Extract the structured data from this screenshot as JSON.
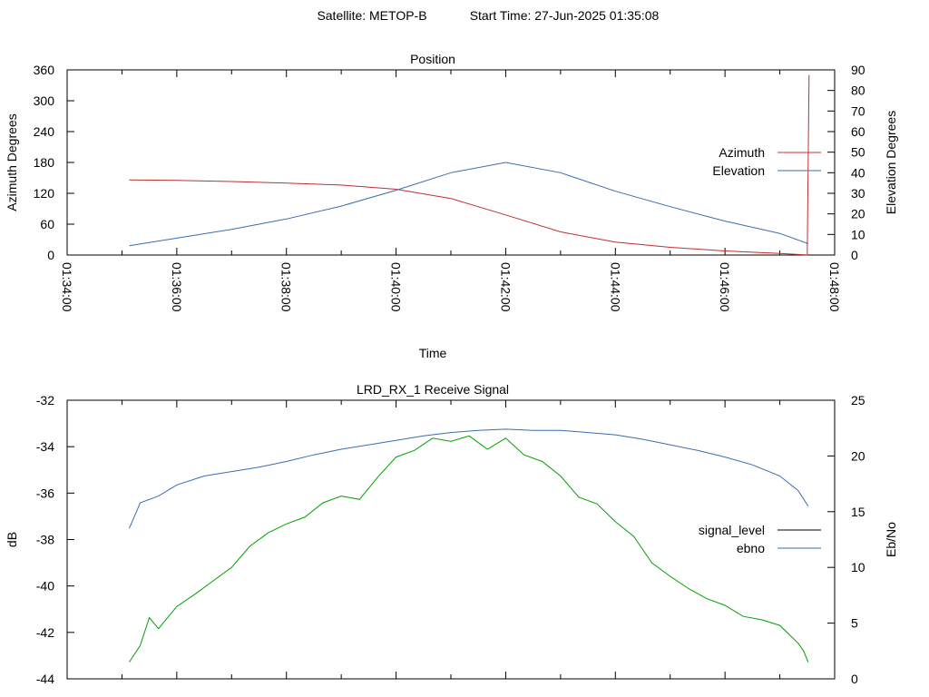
{
  "header": {
    "satellite_label": "Satellite: METOP-B",
    "start_label": "Start Time: 27-Jun-2025 01:35:08"
  },
  "chart_data": [
    {
      "type": "line",
      "title": "Position",
      "xlabel": "Time",
      "ylabel": "Azimuth Degrees",
      "y2label": "Elevation Degrees",
      "x_ticks": [
        "01:34:00",
        "01:36:00",
        "01:38:00",
        "01:40:00",
        "01:42:00",
        "01:44:00",
        "01:46:00",
        "01:48:00"
      ],
      "xlim": [
        0,
        840
      ],
      "ylim": [
        0,
        360
      ],
      "y_ticks": [
        0,
        60,
        120,
        180,
        240,
        300,
        360
      ],
      "y2lim": [
        0,
        90
      ],
      "y2_ticks": [
        0,
        10,
        20,
        30,
        40,
        50,
        60,
        70,
        80,
        90
      ],
      "legend_position": "right",
      "series": [
        {
          "name": "Azimuth",
          "color": "#c03030",
          "axis": "left",
          "x": [
            68,
            120,
            180,
            240,
            300,
            360,
            420,
            480,
            540,
            600,
            660,
            720,
            780,
            800,
            808,
            810,
            812
          ],
          "values": [
            146,
            145,
            143,
            140,
            136,
            128,
            110,
            78,
            45,
            25,
            15,
            8,
            3,
            1,
            0.5,
            0,
            350
          ]
        },
        {
          "name": "Elevation",
          "color": "#3a6db0",
          "axis": "right",
          "x": [
            68,
            120,
            180,
            240,
            300,
            360,
            420,
            480,
            540,
            600,
            660,
            720,
            780,
            811
          ],
          "values": [
            4.5,
            8.2,
            12.5,
            17.5,
            23.8,
            31.5,
            40,
            45,
            40,
            31,
            23.5,
            16.5,
            10.5,
            5.5
          ]
        }
      ]
    },
    {
      "type": "line",
      "title": "LRD_RX_1 Receive Signal",
      "ylabel": "dB",
      "y2label": "Eb/No",
      "xlim": [
        0,
        840
      ],
      "ylim": [
        -44,
        -32
      ],
      "y_ticks": [
        -44,
        -42,
        -40,
        -38,
        -36,
        -34,
        -32
      ],
      "y2lim": [
        0,
        25
      ],
      "y2_ticks": [
        0,
        5,
        10,
        15,
        20,
        25
      ],
      "legend_position": "right",
      "series": [
        {
          "name": "signal_level",
          "color": "#000000",
          "axis": "left",
          "x": [],
          "values": []
        },
        {
          "name": "ebno",
          "color": "#3a6db0",
          "axis": "right",
          "x": [
            68,
            80,
            100,
            120,
            150,
            180,
            210,
            240,
            270,
            300,
            330,
            360,
            390,
            420,
            450,
            480,
            510,
            540,
            570,
            600,
            630,
            660,
            690,
            720,
            750,
            780,
            800,
            811
          ],
          "values": [
            13.5,
            15.8,
            16.4,
            17.4,
            18.2,
            18.6,
            19,
            19.5,
            20.1,
            20.6,
            21,
            21.4,
            21.8,
            22.1,
            22.3,
            22.4,
            22.3,
            22.3,
            22.1,
            21.9,
            21.5,
            21,
            20.5,
            19.9,
            19.2,
            18.2,
            16.9,
            15.5
          ]
        },
        {
          "name": "",
          "color": "#00a000",
          "axis": "right",
          "x": [
            68,
            80,
            90,
            100,
            120,
            140,
            160,
            180,
            200,
            220,
            240,
            260,
            280,
            300,
            320,
            340,
            360,
            380,
            400,
            420,
            440,
            460,
            480,
            500,
            520,
            540,
            560,
            580,
            600,
            620,
            640,
            660,
            680,
            700,
            720,
            740,
            760,
            780,
            790,
            800,
            806,
            811
          ],
          "values": [
            1.5,
            3,
            5.5,
            4.5,
            6.5,
            7.6,
            8.8,
            10,
            11.9,
            13.1,
            13.9,
            14.5,
            15.8,
            16.4,
            16.1,
            18.1,
            19.9,
            20.5,
            21.6,
            21.3,
            21.8,
            20.6,
            21.6,
            20.1,
            19.5,
            18.2,
            16.3,
            15.7,
            14.1,
            12.8,
            10.4,
            9.2,
            8.1,
            7.2,
            6.6,
            5.6,
            5.3,
            4.8,
            4.0,
            3.2,
            2.5,
            1.5
          ]
        }
      ]
    }
  ]
}
